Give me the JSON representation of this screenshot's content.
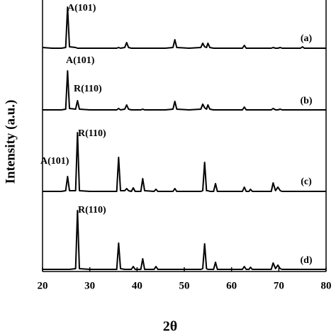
{
  "chart_data": {
    "type": "line",
    "x_label": "2θ",
    "y_label": "Intensity (a.u.)",
    "xlim": [
      20,
      80
    ],
    "xticks": [
      20,
      30,
      40,
      50,
      60,
      70,
      80
    ],
    "x": [
      20,
      22,
      24,
      24.9,
      25.3,
      25.7,
      27.0,
      27.4,
      27.8,
      30,
      33,
      35.7,
      36.1,
      36.5,
      37.4,
      37.8,
      38.2,
      38.8,
      39.2,
      39.6,
      40.8,
      41.2,
      41.6,
      43.6,
      44.0,
      44.4,
      46,
      47.6,
      48.0,
      48.4,
      51,
      53.5,
      53.9,
      54.3,
      54.7,
      55.0,
      55.4,
      56.2,
      56.6,
      57.0,
      59,
      62.3,
      62.7,
      63.1,
      63.7,
      64.0,
      64.4,
      66,
      68.4,
      68.8,
      69.3,
      69.8,
      70.3,
      70.7,
      72,
      74.6,
      75.0,
      75.4,
      77,
      80
    ],
    "series": [
      {
        "name": "(a)",
        "color": "#000000",
        "values": [
          3,
          2,
          2,
          3,
          60,
          4,
          3,
          2,
          2,
          2,
          2,
          2,
          3,
          2,
          3,
          10,
          3,
          2,
          2,
          2,
          2,
          2,
          2,
          2,
          2,
          2,
          2,
          3,
          14,
          3,
          2,
          3,
          9,
          4,
          3,
          9,
          3,
          2,
          2,
          2,
          2,
          2,
          6,
          2,
          2,
          2,
          2,
          2,
          2,
          3,
          2,
          2,
          3,
          2,
          2,
          2,
          4,
          2,
          2,
          2
        ]
      },
      {
        "name": "(b)",
        "color": "#000000",
        "values": [
          2,
          2,
          2,
          3,
          57,
          4,
          3,
          15,
          3,
          2,
          2,
          2,
          4,
          2,
          3,
          9,
          3,
          2,
          2,
          2,
          2,
          3,
          2,
          2,
          2,
          2,
          2,
          3,
          14,
          3,
          2,
          3,
          10,
          5,
          3,
          9,
          3,
          2,
          2,
          2,
          2,
          2,
          6,
          2,
          2,
          2,
          2,
          2,
          2,
          4,
          2,
          2,
          3,
          2,
          2,
          2,
          2,
          2,
          2,
          2
        ]
      },
      {
        "name": "(c)",
        "color": "#000000",
        "values": [
          2,
          2,
          2,
          3,
          23,
          3,
          3,
          85,
          3,
          2,
          2,
          2,
          50,
          3,
          3,
          6,
          3,
          2,
          7,
          2,
          2,
          20,
          3,
          2,
          5,
          2,
          2,
          2,
          6,
          2,
          2,
          2,
          3,
          43,
          3,
          3,
          2,
          2,
          13,
          2,
          2,
          2,
          8,
          2,
          2,
          5,
          2,
          2,
          2,
          14,
          3,
          8,
          3,
          2,
          2,
          2,
          2,
          2,
          2,
          2
        ]
      },
      {
        "name": "(d)",
        "color": "#000000",
        "values": [
          2,
          2,
          2,
          2,
          2,
          2,
          3,
          85,
          3,
          2,
          2,
          2,
          39,
          3,
          2,
          2,
          2,
          2,
          6,
          2,
          2,
          17,
          2,
          2,
          6,
          2,
          2,
          2,
          2,
          2,
          2,
          2,
          3,
          38,
          3,
          2,
          2,
          2,
          12,
          2,
          2,
          2,
          6,
          2,
          2,
          5,
          2,
          2,
          2,
          11,
          3,
          8,
          3,
          2,
          2,
          2,
          2,
          2,
          2,
          2
        ]
      }
    ],
    "annotations": [
      "A(101)",
      "A(101)",
      "R(110)",
      "A(101)",
      "R(110)",
      "R(110)"
    ]
  }
}
